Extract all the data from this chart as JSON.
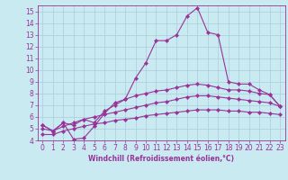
{
  "title": "",
  "xlabel": "Windchill (Refroidissement éolien,°C)",
  "ylabel": "",
  "background_color": "#c8eaf0",
  "grid_color": "#aaccdd",
  "line_color": "#993399",
  "spine_color": "#993399",
  "xlim": [
    -0.5,
    23.5
  ],
  "ylim": [
    4,
    15.5
  ],
  "yticks": [
    4,
    5,
    6,
    7,
    8,
    9,
    10,
    11,
    12,
    13,
    14,
    15
  ],
  "xticks": [
    0,
    1,
    2,
    3,
    4,
    5,
    6,
    7,
    8,
    9,
    10,
    11,
    12,
    13,
    14,
    15,
    16,
    17,
    18,
    19,
    20,
    21,
    22,
    23
  ],
  "series": [
    [
      5.3,
      4.8,
      5.5,
      4.1,
      4.2,
      5.2,
      6.3,
      7.2,
      7.5,
      9.3,
      10.6,
      12.5,
      12.5,
      13.0,
      14.6,
      15.3,
      13.2,
      13.0,
      9.0,
      8.8,
      8.8,
      8.3,
      7.9,
      6.9
    ],
    [
      5.3,
      4.8,
      5.5,
      5.3,
      5.8,
      5.5,
      6.5,
      7.0,
      7.5,
      7.8,
      8.0,
      8.2,
      8.3,
      8.5,
      8.7,
      8.8,
      8.7,
      8.5,
      8.3,
      8.3,
      8.2,
      8.0,
      7.9,
      6.9
    ],
    [
      5.0,
      4.8,
      5.2,
      5.5,
      5.8,
      6.0,
      6.2,
      6.4,
      6.6,
      6.8,
      7.0,
      7.2,
      7.3,
      7.5,
      7.7,
      7.8,
      7.8,
      7.7,
      7.6,
      7.5,
      7.4,
      7.3,
      7.2,
      6.9
    ],
    [
      4.5,
      4.5,
      4.8,
      5.0,
      5.2,
      5.4,
      5.5,
      5.7,
      5.8,
      5.9,
      6.1,
      6.2,
      6.3,
      6.4,
      6.5,
      6.6,
      6.6,
      6.6,
      6.5,
      6.5,
      6.4,
      6.4,
      6.3,
      6.2
    ]
  ],
  "tick_fontsize": 5.5,
  "xlabel_fontsize": 5.5,
  "marker_size": 2.2,
  "linewidth": 0.8
}
